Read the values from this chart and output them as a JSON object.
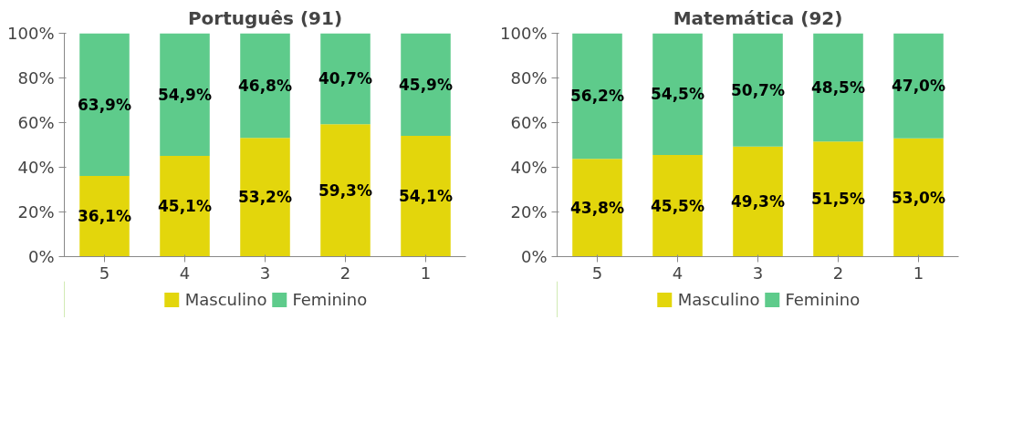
{
  "chart_data": [
    {
      "type": "bar",
      "title": "Português (91)",
      "categories": [
        "5",
        "4",
        "3",
        "2",
        "1"
      ],
      "stacked": true,
      "ylim": [
        0,
        100
      ],
      "yticks": [
        {
          "value": 0,
          "label": "0%"
        },
        {
          "value": 20,
          "label": "20%"
        },
        {
          "value": 40,
          "label": "40%"
        },
        {
          "value": 60,
          "label": "60%"
        },
        {
          "value": 80,
          "label": "80%"
        },
        {
          "value": 100,
          "label": "100%"
        }
      ],
      "grid": false,
      "legend": "bottom",
      "series": [
        {
          "name": "Masculino",
          "color": "#e3d60c",
          "values": [
            36.1,
            45.1,
            53.2,
            59.3,
            54.1
          ],
          "value_labels": [
            "36,1%",
            "45,1%",
            "53,2%",
            "59,3%",
            "54,1%"
          ]
        },
        {
          "name": "Feminino",
          "color": "#5ecb8b",
          "values": [
            63.9,
            54.9,
            46.8,
            40.7,
            45.9
          ],
          "value_labels": [
            "63,9%",
            "54,9%",
            "46,8%",
            "40,7%",
            "45,9%"
          ]
        }
      ]
    },
    {
      "type": "bar",
      "title": "Matemática (92)",
      "categories": [
        "5",
        "4",
        "3",
        "2",
        "1"
      ],
      "stacked": true,
      "ylim": [
        0,
        100
      ],
      "yticks": [
        {
          "value": 0,
          "label": "0%"
        },
        {
          "value": 20,
          "label": "20%"
        },
        {
          "value": 40,
          "label": "40%"
        },
        {
          "value": 60,
          "label": "60%"
        },
        {
          "value": 80,
          "label": "80%"
        },
        {
          "value": 100,
          "label": "100%"
        }
      ],
      "grid": false,
      "legend": "bottom",
      "series": [
        {
          "name": "Masculino",
          "color": "#e3d60c",
          "values": [
            43.8,
            45.5,
            49.3,
            51.5,
            53.0
          ],
          "value_labels": [
            "43,8%",
            "45,5%",
            "49,3%",
            "51,5%",
            "53,0%"
          ]
        },
        {
          "name": "Feminino",
          "color": "#5ecb8b",
          "values": [
            56.2,
            54.5,
            50.7,
            48.5,
            47.0
          ],
          "value_labels": [
            "56,2%",
            "54,5%",
            "50,7%",
            "48,5%",
            "47,0%"
          ]
        }
      ]
    }
  ]
}
